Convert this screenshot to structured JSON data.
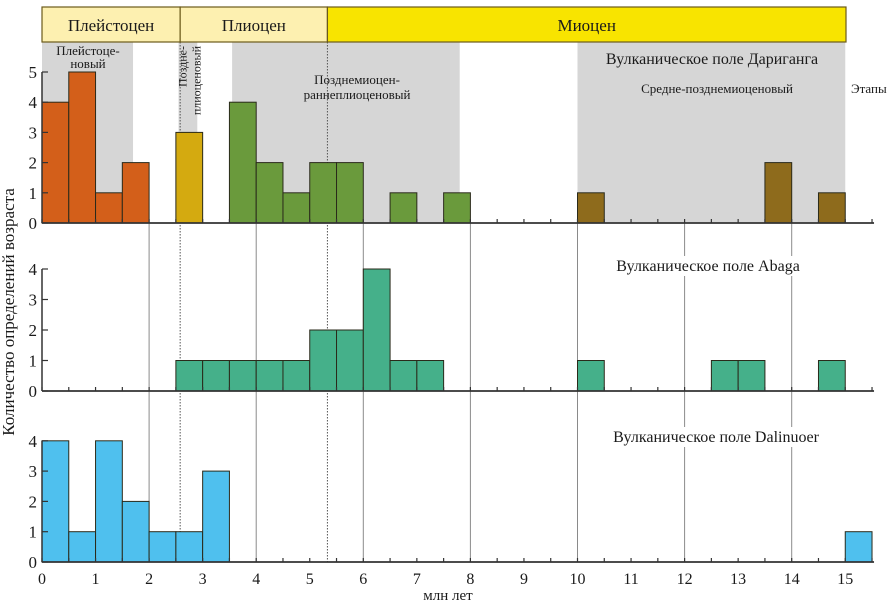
{
  "chart_data": {
    "type": "bar",
    "subtype": "stacked-panel-histogram",
    "xlabel": "млн лет",
    "ylabel": "Количество определений возраста",
    "xlim": [
      0,
      15.5
    ],
    "x_ticks": [
      0,
      1,
      2,
      3,
      4,
      5,
      6,
      7,
      8,
      9,
      10,
      11,
      12,
      13,
      14,
      15
    ],
    "bin_width": 0.5,
    "epochs": [
      {
        "label": "Плейстоцен",
        "from": 0,
        "to": 2.58,
        "color": "#fdf0b0"
      },
      {
        "label": "Плиоцен",
        "from": 2.58,
        "to": 5.33,
        "color": "#fdf0b0"
      },
      {
        "label": "Миоцен",
        "from": 5.33,
        "to": 15.5,
        "color": "#f8e400"
      }
    ],
    "stages_label": "Этапы",
    "stages": [
      {
        "label": "Плейстоце-\nновый",
        "from": 0,
        "to": 1.7
      },
      {
        "label": "Позднe-\nплиоценовый",
        "from": 2.55,
        "to": 2.9,
        "vertical": true
      },
      {
        "label": "Позднемиоцен-\nраннеплиоценовый",
        "from": 3.55,
        "to": 7.8
      },
      {
        "label": "Средне-позднемиоценовый",
        "from": 10,
        "to": 15
      }
    ],
    "reference_lines": {
      "solid": [
        2,
        4,
        6,
        8,
        10,
        12,
        14
      ],
      "dotted": [
        2.58,
        5.33
      ]
    },
    "panels": [
      {
        "title": "Вулканическое поле Дариганга",
        "ylim": [
          0,
          5
        ],
        "y_ticks": [
          0,
          1,
          2,
          3,
          4,
          5
        ],
        "bars": [
          {
            "from": 0,
            "to": 0.5,
            "value": 4,
            "color": "#d35f1a"
          },
          {
            "from": 0.5,
            "to": 1,
            "value": 5,
            "color": "#d35f1a"
          },
          {
            "from": 1,
            "to": 1.5,
            "value": 1,
            "color": "#d35f1a"
          },
          {
            "from": 1.5,
            "to": 2,
            "value": 2,
            "color": "#d35f1a"
          },
          {
            "from": 2.5,
            "to": 3,
            "value": 3,
            "color": "#d4aa10"
          },
          {
            "from": 3.5,
            "to": 4,
            "value": 4,
            "color": "#6a9a3c"
          },
          {
            "from": 4,
            "to": 4.5,
            "value": 2,
            "color": "#6a9a3c"
          },
          {
            "from": 4.5,
            "to": 5,
            "value": 1,
            "color": "#6a9a3c"
          },
          {
            "from": 5,
            "to": 5.5,
            "value": 2,
            "color": "#6a9a3c"
          },
          {
            "from": 5.5,
            "to": 6,
            "value": 2,
            "color": "#6a9a3c"
          },
          {
            "from": 6.5,
            "to": 7,
            "value": 1,
            "color": "#6a9a3c"
          },
          {
            "from": 7.5,
            "to": 8,
            "value": 1,
            "color": "#6a9a3c"
          },
          {
            "from": 10,
            "to": 10.5,
            "value": 1,
            "color": "#8e6b1c"
          },
          {
            "from": 13.5,
            "to": 14,
            "value": 2,
            "color": "#8e6b1c"
          },
          {
            "from": 14.5,
            "to": 15,
            "value": 1,
            "color": "#8e6b1c"
          }
        ]
      },
      {
        "title": "Вулканическое поле Abaga",
        "ylim": [
          0,
          4
        ],
        "y_ticks": [
          0,
          1,
          2,
          3,
          4
        ],
        "bars": [
          {
            "from": 2.5,
            "to": 3,
            "value": 1,
            "color": "#45b08a"
          },
          {
            "from": 3,
            "to": 3.5,
            "value": 1,
            "color": "#45b08a"
          },
          {
            "from": 3.5,
            "to": 4,
            "value": 1,
            "color": "#45b08a"
          },
          {
            "from": 4,
            "to": 4.5,
            "value": 1,
            "color": "#45b08a"
          },
          {
            "from": 4.5,
            "to": 5,
            "value": 1,
            "color": "#45b08a"
          },
          {
            "from": 5,
            "to": 5.5,
            "value": 2,
            "color": "#45b08a"
          },
          {
            "from": 5.5,
            "to": 6,
            "value": 2,
            "color": "#45b08a"
          },
          {
            "from": 6,
            "to": 6.5,
            "value": 4,
            "color": "#45b08a"
          },
          {
            "from": 6.5,
            "to": 7,
            "value": 1,
            "color": "#45b08a"
          },
          {
            "from": 7,
            "to": 7.5,
            "value": 1,
            "color": "#45b08a"
          },
          {
            "from": 10,
            "to": 10.5,
            "value": 1,
            "color": "#45b08a"
          },
          {
            "from": 12.5,
            "to": 13,
            "value": 1,
            "color": "#45b08a"
          },
          {
            "from": 13,
            "to": 13.5,
            "value": 1,
            "color": "#45b08a"
          },
          {
            "from": 14.5,
            "to": 15,
            "value": 1,
            "color": "#45b08a"
          }
        ]
      },
      {
        "title": "Вулканическое поле Dalinuoer",
        "ylim": [
          0,
          4
        ],
        "y_ticks": [
          0,
          1,
          2,
          3,
          4
        ],
        "bars": [
          {
            "from": 0,
            "to": 0.5,
            "value": 4,
            "color": "#4fc0ee"
          },
          {
            "from": 0.5,
            "to": 1,
            "value": 1,
            "color": "#4fc0ee"
          },
          {
            "from": 1,
            "to": 1.5,
            "value": 4,
            "color": "#4fc0ee"
          },
          {
            "from": 1.5,
            "to": 2,
            "value": 2,
            "color": "#4fc0ee"
          },
          {
            "from": 2,
            "to": 2.5,
            "value": 1,
            "color": "#4fc0ee"
          },
          {
            "from": 2.5,
            "to": 3,
            "value": 1,
            "color": "#4fc0ee"
          },
          {
            "from": 3,
            "to": 3.5,
            "value": 3,
            "color": "#4fc0ee"
          },
          {
            "from": 15,
            "to": 15.5,
            "value": 1,
            "color": "#4fc0ee"
          }
        ]
      }
    ],
    "stage_band_color": "#d6d6d6"
  }
}
